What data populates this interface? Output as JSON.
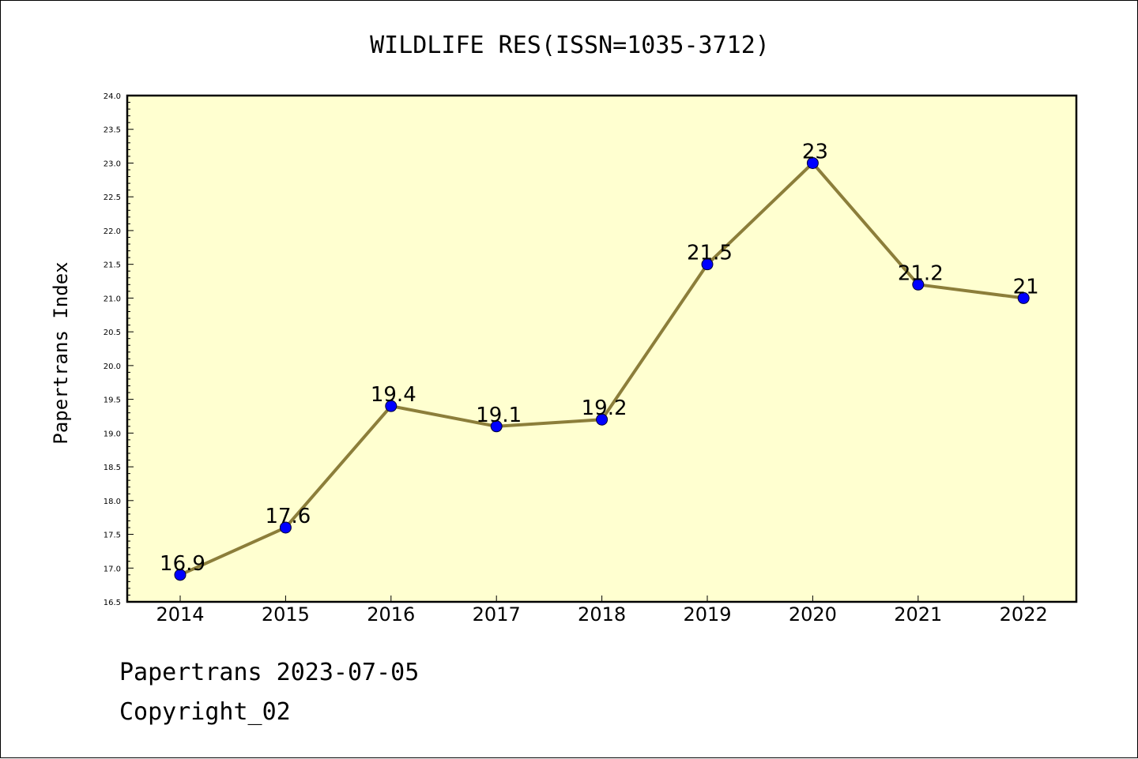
{
  "chart_data": {
    "type": "line",
    "title": "WILDLIFE RES(ISSN=1035-3712)",
    "xlabel": "",
    "ylabel": "Papertrans Index",
    "categories": [
      "2014",
      "2015",
      "2016",
      "2017",
      "2018",
      "2019",
      "2020",
      "2021",
      "2022"
    ],
    "series": [
      {
        "values": [
          16.9,
          17.6,
          19.4,
          19.1,
          19.2,
          21.5,
          23,
          21.2,
          21
        ],
        "labels": [
          "16.9",
          "17.6",
          "19.4",
          "19.1",
          "19.2",
          "21.5",
          "23",
          "21.2",
          "21"
        ]
      }
    ],
    "ylim": [
      16.5,
      24.0
    ],
    "yticks": [
      "16.5",
      "17.0",
      "17.5",
      "18.0",
      "18.5",
      "19.0",
      "19.5",
      "20.0",
      "20.5",
      "21.0",
      "21.5",
      "22.0",
      "22.5",
      "23.0",
      "23.5",
      "24.0"
    ],
    "grid": false,
    "legend": "none",
    "colors": {
      "plot_background": "#ffffd0",
      "line": "#8c7e3a",
      "marker": "#0000ff"
    }
  },
  "footer": {
    "line1": "Papertrans 2023-07-05",
    "line2": "Copyright_02"
  }
}
